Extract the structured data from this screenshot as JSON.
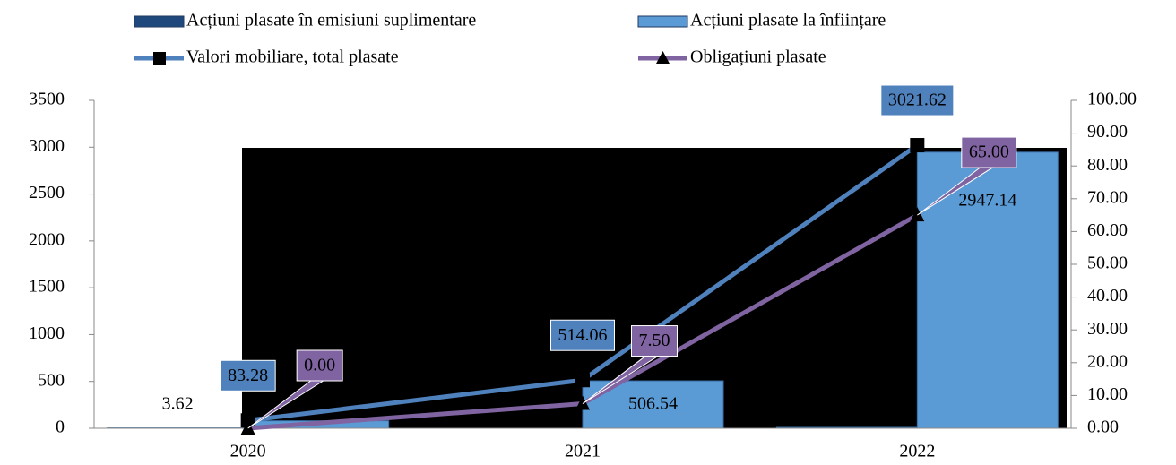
{
  "chart_data": {
    "type": "bar",
    "categories": [
      "2020",
      "2021",
      "2022"
    ],
    "series": [
      {
        "name": "Acțiuni plasate în emisiuni suplimentare",
        "type": "bar",
        "color": "#1f497d",
        "values": [
          3.62,
          0.02,
          9.48
        ]
      },
      {
        "name": "Acțiuni plasate la înființare",
        "type": "bar",
        "color": "#5b9bd5",
        "values": [
          79.66,
          506.54,
          2947.14
        ]
      },
      {
        "name": "Valori mobiliare, total plasate",
        "type": "line",
        "marker": "square",
        "color": "#4f81bd",
        "values": [
          83.28,
          514.06,
          3021.62
        ]
      },
      {
        "name": "Obligațiuni plasate",
        "type": "line",
        "marker": "triangle",
        "axis": "y2",
        "color": "#8064a2",
        "values": [
          0,
          7.5,
          65
        ],
        "value_labels": [
          "0.00",
          "7.50",
          "65.00"
        ]
      }
    ],
    "ylim": [
      0,
      3500
    ],
    "yticks": [
      0,
      500,
      1000,
      1500,
      2000,
      2500,
      3000,
      3500
    ],
    "y2lim": [
      0,
      100
    ],
    "y2ticks": [
      {
        "value": 0,
        "label": "0.00"
      },
      {
        "value": 10,
        "label": "10.00"
      },
      {
        "value": 20,
        "label": "20.00"
      },
      {
        "value": 30,
        "label": "30.00"
      },
      {
        "value": 40,
        "label": "40.00"
      },
      {
        "value": 50,
        "label": "50.00"
      },
      {
        "value": 60,
        "label": "60.00"
      },
      {
        "value": 70,
        "label": "70.00"
      },
      {
        "value": 80,
        "label": "80.00"
      },
      {
        "value": 90,
        "label": "90.00"
      },
      {
        "value": 100,
        "label": "100.00"
      }
    ],
    "grid": false
  }
}
